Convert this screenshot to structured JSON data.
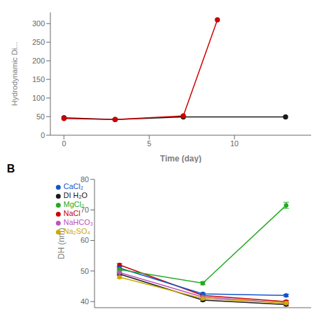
{
  "chart_data": [
    {
      "type": "line",
      "x_label": "Time (day)",
      "y_label": "Hydrodynamic Di...",
      "xlim": [
        -0.8,
        14.5
      ],
      "xticks": [
        0,
        5,
        10
      ],
      "ylim": [
        0,
        330
      ],
      "yticks": [
        0,
        50,
        100,
        150,
        200,
        250,
        300
      ],
      "marker": "circle",
      "grid": false,
      "series": [
        {
          "color": "#1a1a1a",
          "x": [
            0,
            3,
            7,
            13
          ],
          "values": [
            47,
            42,
            49,
            49
          ]
        },
        {
          "color": "#cc0000",
          "x": [
            0,
            3,
            7,
            9
          ],
          "values": [
            45,
            42,
            52,
            310
          ]
        }
      ]
    },
    {
      "type": "line",
      "y_label": "DH (nm)",
      "annotations": [
        "B"
      ],
      "x": [
        0,
        1,
        2
      ],
      "xlim": [
        -0.3,
        2.3
      ],
      "xticks": [
        0,
        1,
        2
      ],
      "ylim": [
        38,
        80
      ],
      "yticks": [
        40,
        50,
        60,
        70,
        80
      ],
      "tick_labels": "y",
      "legend": "upper left",
      "marker": "circle",
      "grid": false,
      "series": [
        {
          "name": "DI H₂O",
          "color": "#1a1a1a",
          "values": [
            49.0,
            40.5,
            39.0
          ],
          "yerr": [
            0.4,
            0.4,
            0.4
          ]
        },
        {
          "name": "NaCl",
          "color": "#cc0000",
          "values": [
            52.0,
            42.0,
            40.0
          ],
          "yerr": [
            0.4,
            0.4,
            0.4
          ]
        },
        {
          "name": "CaCl₂",
          "color": "#1155cc",
          "values": [
            51.0,
            42.5,
            42.0
          ],
          "yerr": [
            0.4,
            0.4,
            0.4
          ]
        },
        {
          "name": "MgCl₂",
          "color": "#22aa22",
          "values": [
            50.5,
            46.0,
            71.5
          ],
          "yerr": [
            0.4,
            0.5,
            1.0
          ]
        },
        {
          "name": "NaHCO₃",
          "color": "#bb55bb",
          "values": [
            49.5,
            41.5,
            39.5
          ],
          "yerr": [
            0.4,
            0.4,
            0.4
          ]
        },
        {
          "name": "Na₂SO₄",
          "color": "#ccaa00",
          "values": [
            48.0,
            41.0,
            39.5
          ],
          "yerr": [
            0.4,
            0.4,
            0.4
          ]
        }
      ]
    }
  ]
}
